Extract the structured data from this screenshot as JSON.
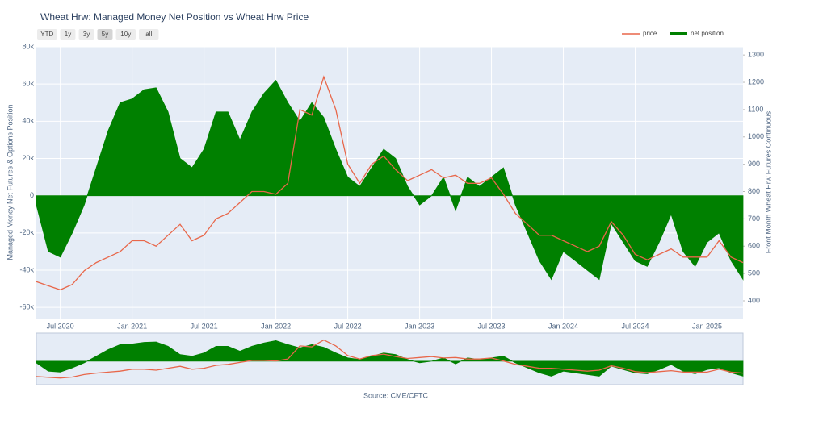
{
  "chart_data": {
    "type": "line_area",
    "title": "Wheat Hrw: Managed Money Net Position vs Wheat Hrw Price",
    "range_selector": {
      "buttons": [
        "YTD",
        "1y",
        "3y",
        "5y",
        "10y",
        "all"
      ],
      "active": 3
    },
    "y_label": "Managed Money Net Futures & Options Position",
    "y2_label": "Front Month Wheat Hrw Futures Continuous",
    "source": "Source: CME/CFTC",
    "legend": "top right",
    "grid": true,
    "range_slider": true,
    "x": [
      "2020-05",
      "2020-06",
      "2020-07",
      "2020-08",
      "2020-09",
      "2020-10",
      "2020-11",
      "2020-12",
      "2021-01",
      "2021-02",
      "2021-03",
      "2021-04",
      "2021-05",
      "2021-06",
      "2021-07",
      "2021-08",
      "2021-09",
      "2021-10",
      "2021-11",
      "2021-12",
      "2022-01",
      "2022-02",
      "2022-03",
      "2022-04",
      "2022-05",
      "2022-06",
      "2022-07",
      "2022-08",
      "2022-09",
      "2022-10",
      "2022-11",
      "2022-12",
      "2023-01",
      "2023-02",
      "2023-03",
      "2023-04",
      "2023-05",
      "2023-06",
      "2023-07",
      "2023-08",
      "2023-09",
      "2023-10",
      "2023-11",
      "2023-12",
      "2024-01",
      "2024-02",
      "2024-03",
      "2024-04",
      "2024-05",
      "2024-06",
      "2024-07",
      "2024-08",
      "2024-09",
      "2024-10",
      "2024-11",
      "2024-12",
      "2025-01",
      "2025-02",
      "2025-03",
      "2025-04"
    ],
    "series": [
      {
        "name": "price",
        "color": "#e8674a",
        "axis": "y2",
        "style": "line",
        "values": [
          470,
          455,
          440,
          460,
          510,
          540,
          560,
          580,
          620,
          620,
          600,
          640,
          680,
          620,
          640,
          700,
          720,
          760,
          800,
          800,
          790,
          830,
          1100,
          1080,
          1220,
          1100,
          900,
          830,
          900,
          930,
          880,
          840,
          860,
          880,
          850,
          860,
          830,
          830,
          850,
          790,
          720,
          680,
          640,
          640,
          620,
          600,
          580,
          600,
          690,
          640,
          570,
          550,
          570,
          590,
          560,
          560,
          560,
          620,
          560,
          540
        ]
      },
      {
        "name": "net position",
        "color": "#008000",
        "axis": "y",
        "style": "area",
        "values": [
          -5000,
          -30000,
          -33000,
          -20000,
          -5000,
          15000,
          35000,
          50000,
          52000,
          57000,
          58000,
          45000,
          20000,
          15000,
          25000,
          45000,
          45000,
          30000,
          45000,
          55000,
          62000,
          50000,
          40000,
          50000,
          42000,
          25000,
          10000,
          5000,
          15000,
          25000,
          20000,
          5000,
          -5000,
          0,
          10000,
          -8000,
          10000,
          5000,
          10000,
          15000,
          -5000,
          -20000,
          -35000,
          -45000,
          -30000,
          -35000,
          -40000,
          -45000,
          -15000,
          -25000,
          -35000,
          -38000,
          -25000,
          -10000,
          -30000,
          -38000,
          -25000,
          -20000,
          -35000,
          -45000
        ]
      }
    ],
    "xlim": [
      "2020-05",
      "2025-04"
    ],
    "xticks": [
      {
        "value": "2020-07",
        "label": "Jul 2020"
      },
      {
        "value": "2021-01",
        "label": "Jan 2021"
      },
      {
        "value": "2021-07",
        "label": "Jul 2021"
      },
      {
        "value": "2022-01",
        "label": "Jan 2022"
      },
      {
        "value": "2022-07",
        "label": "Jul 2022"
      },
      {
        "value": "2023-01",
        "label": "Jan 2023"
      },
      {
        "value": "2023-07",
        "label": "Jul 2023"
      },
      {
        "value": "2024-01",
        "label": "Jan 2024"
      },
      {
        "value": "2024-07",
        "label": "Jul 2024"
      },
      {
        "value": "2025-01",
        "label": "Jan 2025"
      }
    ],
    "ylim": [
      -66000,
      80000
    ],
    "yticks": [
      {
        "value": -60000,
        "label": "-60k"
      },
      {
        "value": -40000,
        "label": "-40k"
      },
      {
        "value": -20000,
        "label": "-20k"
      },
      0,
      {
        "value": 20000,
        "label": "20k"
      },
      {
        "value": 40000,
        "label": "40k"
      },
      {
        "value": 60000,
        "label": "60k"
      },
      {
        "value": 80000,
        "label": "80k"
      }
    ],
    "y2lim": [
      335,
      1330
    ],
    "y2ticks": [
      400,
      500,
      600,
      700,
      800,
      900,
      1000,
      1100,
      1200,
      1300
    ]
  }
}
